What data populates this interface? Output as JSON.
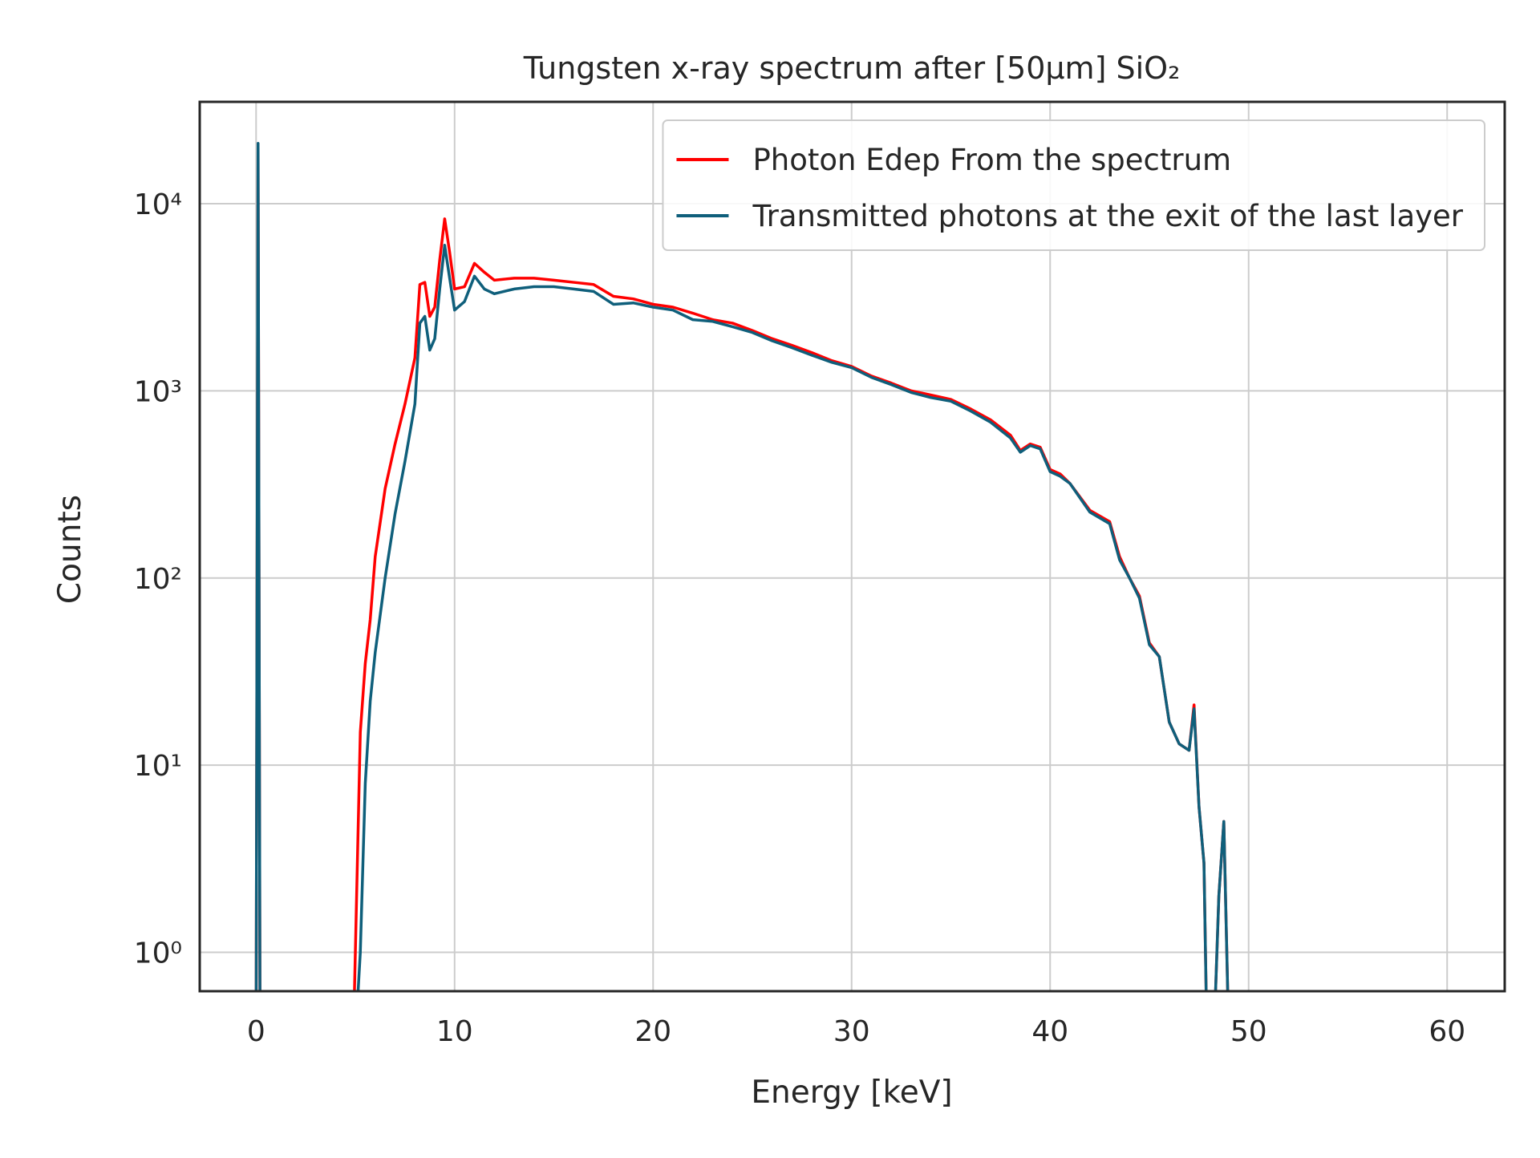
{
  "chart_data": {
    "type": "line",
    "title": "Tungsten x-ray spectrum after [50μm] SiO₂",
    "x_label": "Energy [keV]",
    "y_label": "Counts",
    "log_y": true,
    "grid": true,
    "legend": "upper right",
    "xlim": [
      -2.84,
      62.9
    ],
    "ylim": [
      0.62,
      35000
    ],
    "xticks": [
      0,
      10,
      20,
      30,
      40,
      50,
      60
    ],
    "yticks": [
      {
        "value": 1,
        "label": "10⁰"
      },
      {
        "value": 10,
        "label": "10¹"
      },
      {
        "value": 100,
        "label": "10²"
      },
      {
        "value": 1000,
        "label": "10³"
      },
      {
        "value": 10000,
        "label": "10⁴"
      }
    ],
    "x": [
      0,
      0.1,
      0.2,
      4.9,
      5.0,
      5.25,
      5.5,
      5.75,
      6.0,
      6.5,
      7.0,
      7.5,
      8.0,
      8.25,
      8.5,
      8.75,
      9.0,
      9.25,
      9.5,
      9.75,
      10.0,
      10.5,
      11.0,
      11.5,
      12,
      13,
      14,
      15,
      16,
      17,
      18,
      19,
      20,
      21,
      22,
      23,
      24,
      25,
      26,
      27,
      28,
      29,
      30,
      31,
      32,
      33,
      34,
      35,
      36,
      37,
      38,
      38.5,
      39,
      39.5,
      40,
      40.5,
      41,
      42,
      43,
      43.5,
      44,
      44.5,
      45,
      45.5,
      46,
      46.5,
      47,
      47.25,
      47.5,
      47.75,
      47.9,
      48.25,
      48.5,
      48.75,
      49
    ],
    "series": [
      {
        "name": "Photon Edep From the spectrum",
        "color": "#ff0000",
        "values": [
          0,
          20000,
          0,
          0,
          1,
          15,
          35,
          60,
          130,
          300,
          520,
          850,
          1500,
          3700,
          3800,
          2500,
          2800,
          5000,
          8300,
          5500,
          3500,
          3600,
          4800,
          4300,
          3900,
          4000,
          4000,
          3900,
          3800,
          3700,
          3200,
          3100,
          2900,
          2800,
          2600,
          2400,
          2300,
          2100,
          1900,
          1750,
          1600,
          1450,
          1350,
          1200,
          1100,
          1000,
          950,
          900,
          800,
          700,
          580,
          480,
          520,
          500,
          380,
          360,
          320,
          230,
          200,
          130,
          100,
          80,
          45,
          38,
          17,
          13,
          12,
          21,
          6,
          3,
          0,
          0,
          2,
          5,
          0
        ]
      },
      {
        "name": "Transmitted photons at the exit of the last layer",
        "color": "#0f5f7b",
        "values": [
          0,
          21000,
          0,
          0,
          0,
          1,
          8,
          22,
          40,
          100,
          220,
          420,
          850,
          2300,
          2500,
          1650,
          1900,
          3500,
          6000,
          4000,
          2700,
          3000,
          4100,
          3500,
          3300,
          3500,
          3600,
          3600,
          3500,
          3400,
          2900,
          2950,
          2800,
          2700,
          2400,
          2350,
          2200,
          2050,
          1850,
          1700,
          1550,
          1420,
          1330,
          1180,
          1080,
          980,
          920,
          880,
          780,
          680,
          560,
          470,
          510,
          490,
          370,
          350,
          320,
          225,
          195,
          125,
          100,
          78,
          44,
          38,
          17,
          13,
          12,
          20,
          6,
          3,
          0,
          0,
          2,
          5,
          0
        ]
      }
    ]
  }
}
